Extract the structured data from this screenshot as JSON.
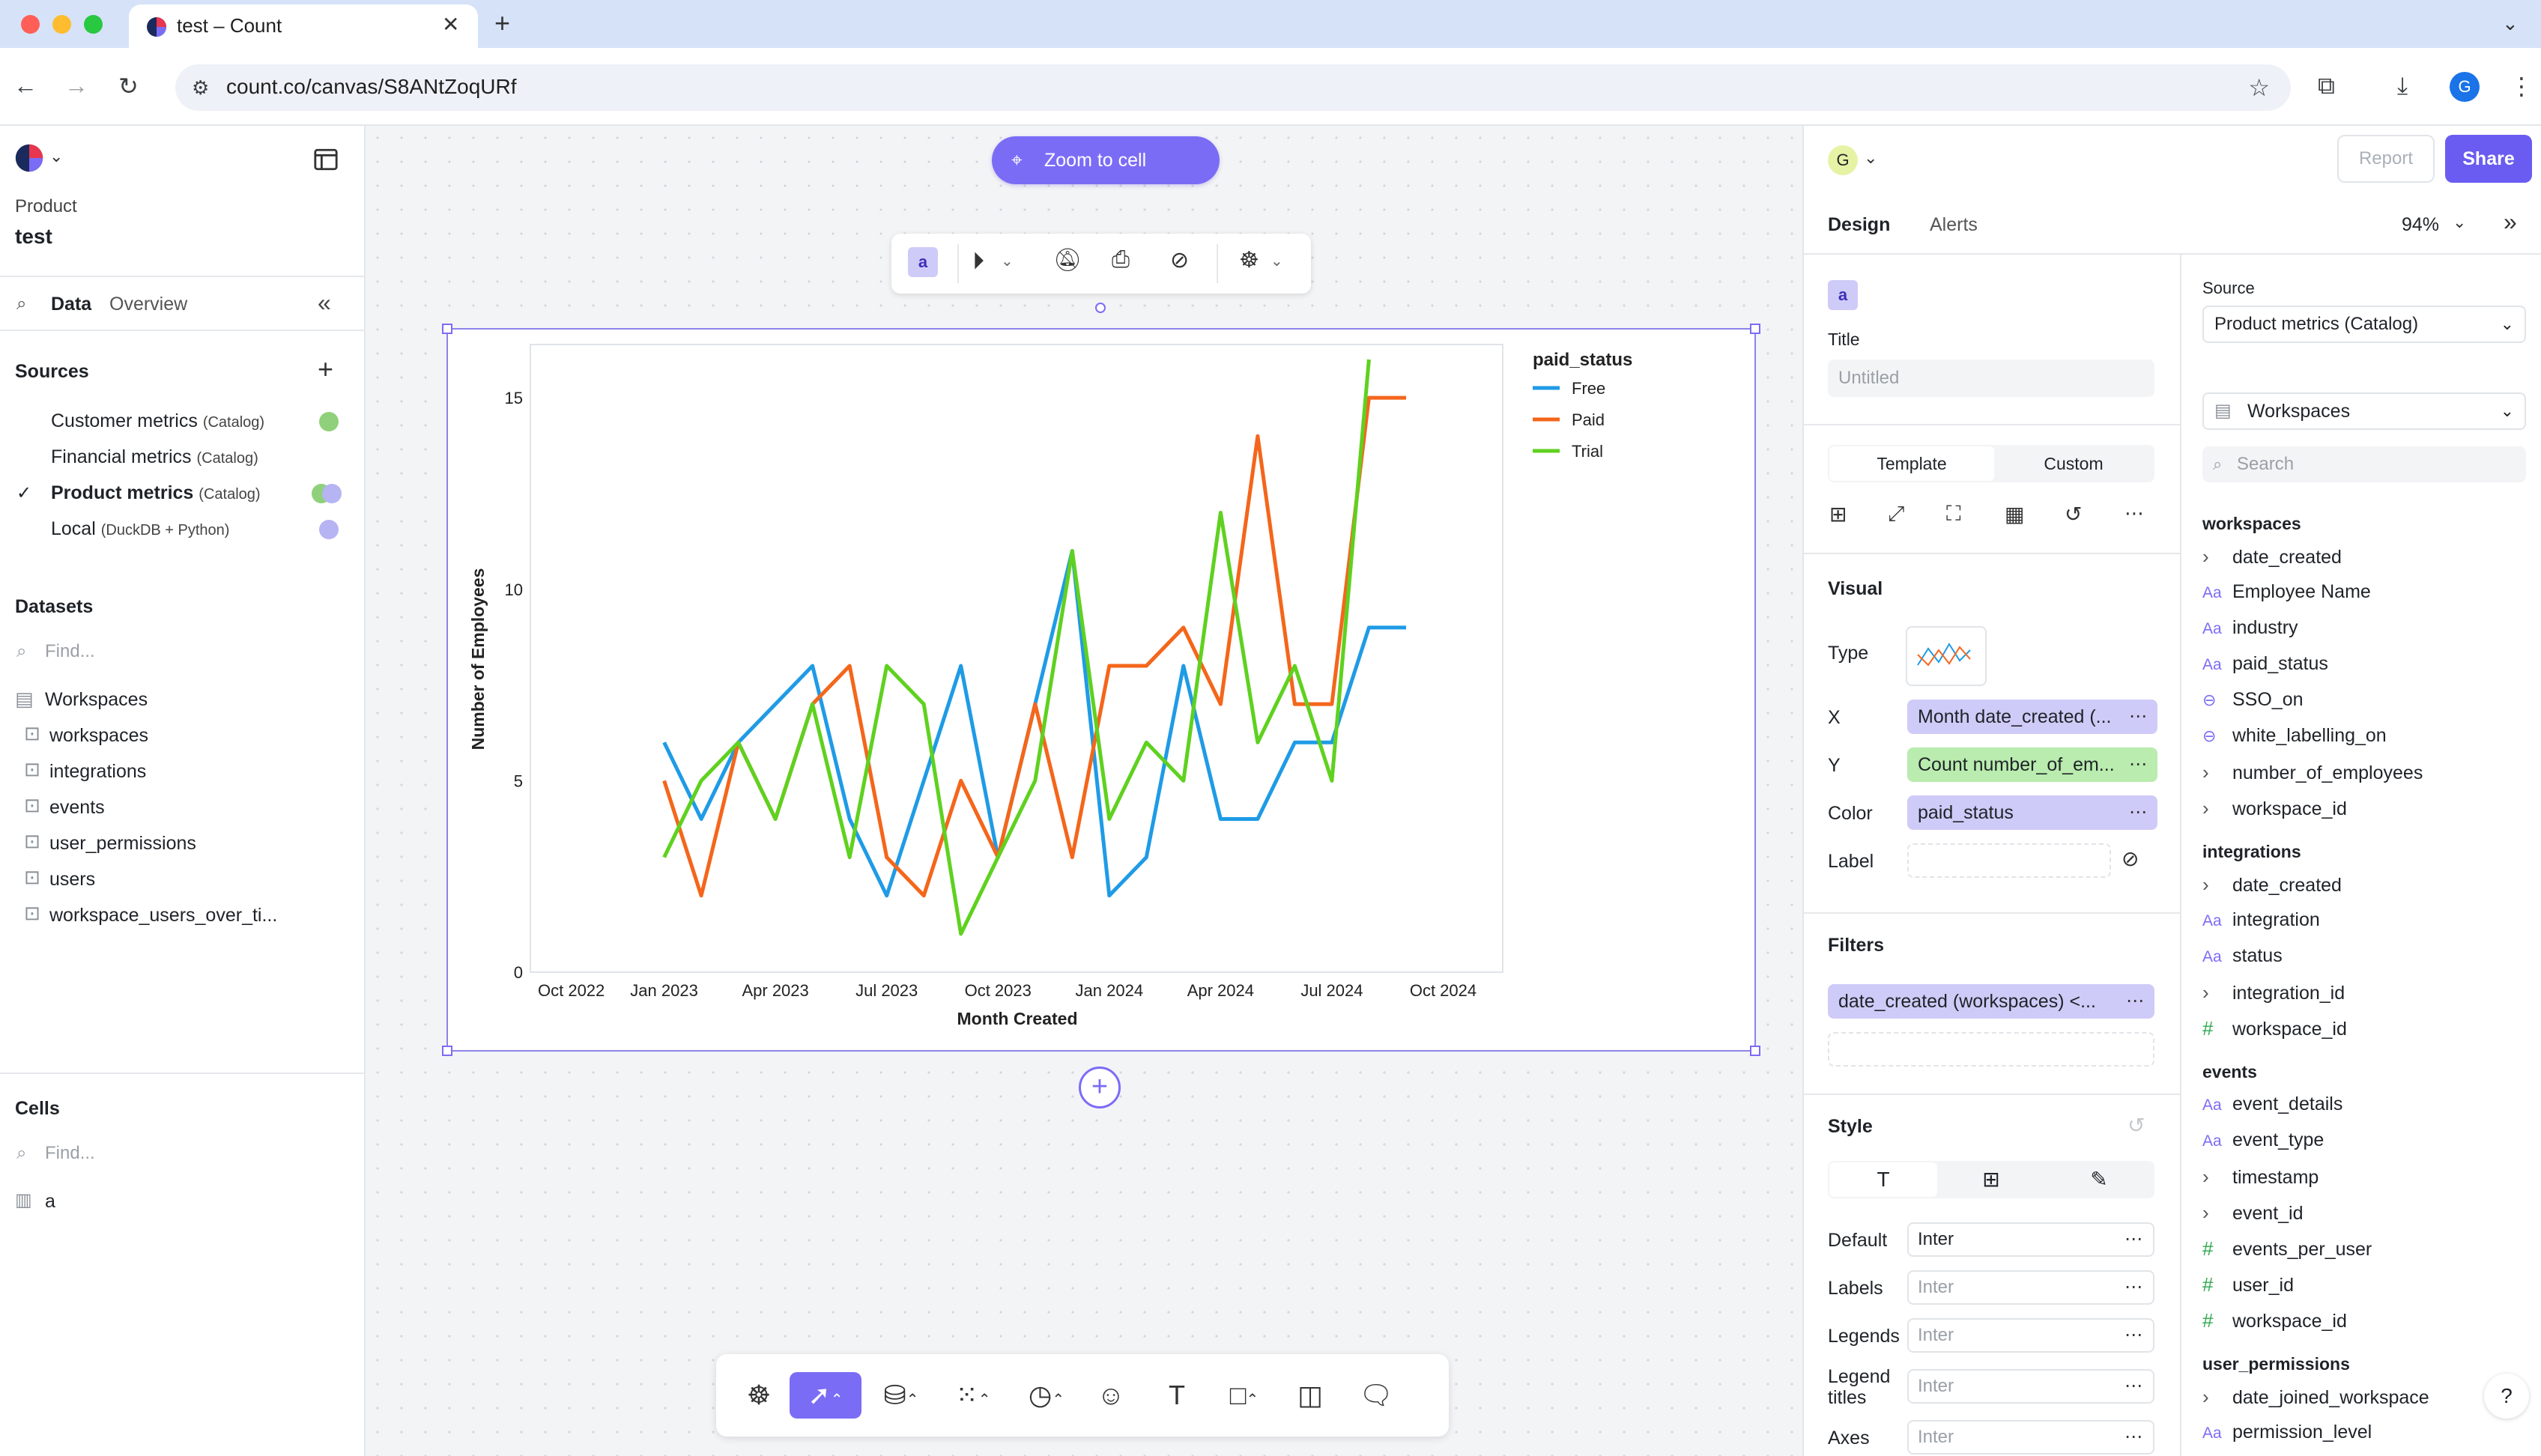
{
  "browser": {
    "tab_title": "test – Count",
    "url": "count.co/canvas/S8ANtZoqURf",
    "profile_initial": "G"
  },
  "left_sidebar": {
    "project_label": "Product",
    "project_name": "test",
    "tabs": [
      "Data",
      "Overview"
    ],
    "sources_title": "Sources",
    "sources": [
      {
        "name": "Customer metrics",
        "sub": "(Catalog)",
        "selected": false,
        "dot_color": "#8fd17b"
      },
      {
        "name": "Financial metrics",
        "sub": "(Catalog)",
        "selected": false,
        "dot_color": ""
      },
      {
        "name": "Product metrics",
        "sub": "(Catalog)",
        "selected": true,
        "dot_color": "#8fd17b"
      },
      {
        "name": "Local",
        "sub": "(DuckDB + Python)",
        "selected": false,
        "dot_color": "#b7b4f4"
      }
    ],
    "datasets_title": "Datasets",
    "datasets_placeholder": "Find...",
    "dataset_group": "Workspaces",
    "datasets": [
      "workspaces",
      "integrations",
      "events",
      "user_permissions",
      "users",
      "workspace_users_over_ti..."
    ],
    "cells_title": "Cells",
    "cells_placeholder": "Find...",
    "cells": [
      "a"
    ]
  },
  "canvas": {
    "zoom_button": "Zoom to cell",
    "cell_badge": "a",
    "bottom_tools": [
      "brain-icon",
      "pointer-icon",
      "database-icon",
      "chart-icon",
      "clock-icon",
      "sticky-note-icon",
      "text-icon",
      "shape-icon",
      "frame-icon",
      "comment-icon"
    ]
  },
  "chart_data": {
    "type": "line",
    "xlabel": "Month Created",
    "ylabel": "Number of Employees",
    "x_tick_labels": [
      "Oct 2022",
      "Jan 2023",
      "Apr 2023",
      "Jul 2023",
      "Oct 2023",
      "Jan 2024",
      "Apr 2024",
      "Jul 2024",
      "Oct 2024"
    ],
    "y_tick_labels": [
      "0",
      "5",
      "10",
      "15"
    ],
    "ylim": [
      0,
      16
    ],
    "legend_title": "paid_status",
    "legend_position": "top-right",
    "grid": false,
    "x": [
      "2023-01",
      "2023-02",
      "2023-03",
      "2023-04",
      "2023-05",
      "2023-06",
      "2023-07",
      "2023-08",
      "2023-09",
      "2023-10",
      "2023-11",
      "2023-12",
      "2024-01",
      "2024-02",
      "2024-03",
      "2024-04",
      "2024-05",
      "2024-06",
      "2024-07",
      "2024-08",
      "2024-09",
      "2024-10"
    ],
    "series": [
      {
        "name": "Free",
        "color": "#1f9be6",
        "values": [
          6,
          4,
          6,
          7,
          8,
          4,
          2,
          5,
          8,
          3,
          7,
          11,
          2,
          3,
          8,
          4,
          4,
          6,
          6,
          9,
          9,
          null
        ]
      },
      {
        "name": "Paid",
        "color": "#f4661b",
        "values": [
          5,
          2,
          6,
          4,
          7,
          8,
          3,
          2,
          5,
          3,
          7,
          3,
          8,
          8,
          9,
          7,
          14,
          7,
          7,
          15,
          15,
          null
        ]
      },
      {
        "name": "Trial",
        "color": "#5fd11f",
        "values": [
          3,
          5,
          6,
          4,
          7,
          3,
          8,
          7,
          1,
          3,
          5,
          11,
          4,
          6,
          5,
          12,
          6,
          8,
          5,
          16,
          null,
          null
        ]
      }
    ]
  },
  "design_panel": {
    "user_initial": "G",
    "report_button": "Report",
    "share_button": "Share",
    "tabs": [
      "Design",
      "Alerts"
    ],
    "zoom_level": "94%",
    "cell_badge": "a",
    "title_label": "Title",
    "title_placeholder": "Untitled",
    "template_tabs": [
      "Template",
      "Custom"
    ],
    "visual_title": "Visual",
    "type_label": "Type",
    "x_label": "X",
    "x_value": "Month date_created (...",
    "y_label": "Y",
    "y_value": "Count number_of_em...",
    "color_label": "Color",
    "color_value": "paid_status",
    "label_label": "Label",
    "filters_title": "Filters",
    "filter_value": "date_created (workspaces) <...",
    "style_title": "Style",
    "style_rows": [
      {
        "label": "Default",
        "value": "Inter",
        "placeholder": false
      },
      {
        "label": "Labels",
        "value": "Inter",
        "placeholder": true
      },
      {
        "label": "Legends",
        "value": "Inter",
        "placeholder": true
      },
      {
        "label": "Legend titles",
        "value": "Inter",
        "placeholder": true
      },
      {
        "label": "Axes",
        "value": "Inter",
        "placeholder": true
      }
    ],
    "source_label": "Source",
    "source_value": "Product metrics (Catalog)",
    "dataset_value": "Workspaces",
    "search_placeholder": "Search",
    "schema": [
      {
        "group": "workspaces",
        "fields": [
          {
            "icon": "chevron",
            "name": "date_created"
          },
          {
            "icon": "text",
            "name": "Employee Name"
          },
          {
            "icon": "text",
            "name": "industry"
          },
          {
            "icon": "text",
            "name": "paid_status"
          },
          {
            "icon": "toggle",
            "name": "SSO_on"
          },
          {
            "icon": "toggle",
            "name": "white_labelling_on"
          },
          {
            "icon": "chevron",
            "name": "number_of_employees"
          },
          {
            "icon": "chevron",
            "name": "workspace_id"
          }
        ]
      },
      {
        "group": "integrations",
        "fields": [
          {
            "icon": "chevron",
            "name": "date_created"
          },
          {
            "icon": "text",
            "name": "integration"
          },
          {
            "icon": "text",
            "name": "status"
          },
          {
            "icon": "chevron",
            "name": "integration_id"
          },
          {
            "icon": "hash",
            "name": "workspace_id"
          }
        ]
      },
      {
        "group": "events",
        "fields": [
          {
            "icon": "text",
            "name": "event_details"
          },
          {
            "icon": "text",
            "name": "event_type"
          },
          {
            "icon": "chevron",
            "name": "timestamp"
          },
          {
            "icon": "chevron",
            "name": "event_id"
          },
          {
            "icon": "hash",
            "name": "events_per_user"
          },
          {
            "icon": "hash",
            "name": "user_id"
          },
          {
            "icon": "hash",
            "name": "workspace_id"
          }
        ]
      },
      {
        "group": "user_permissions",
        "fields": [
          {
            "icon": "chevron",
            "name": "date_joined_workspace"
          },
          {
            "icon": "text",
            "name": "permission_level"
          }
        ]
      }
    ],
    "help_button": "?"
  }
}
